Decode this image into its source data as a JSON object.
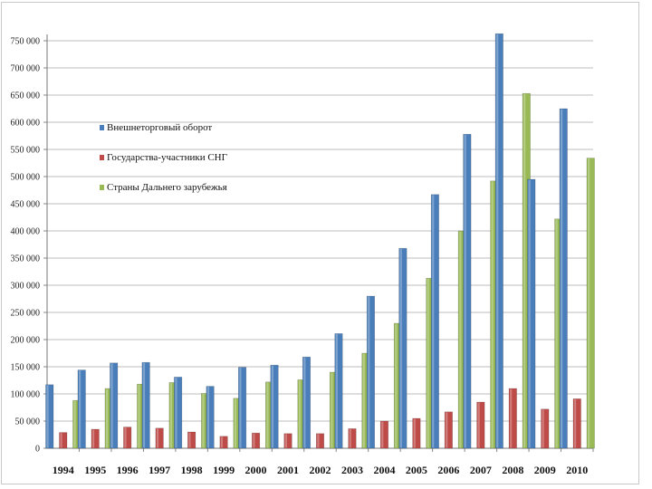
{
  "chart_data": {
    "type": "bar",
    "title": "",
    "xlabel": "",
    "ylabel": "",
    "ylim": [
      0,
      750000
    ],
    "yticks": [
      0,
      50000,
      100000,
      150000,
      200000,
      250000,
      300000,
      350000,
      400000,
      450000,
      500000,
      550000,
      600000,
      650000,
      700000,
      750000
    ],
    "ytick_labels": [
      "0",
      "50 000",
      "100 000",
      "150 000",
      "200 000",
      "250 000",
      "300 000",
      "350 000",
      "400 000",
      "450 000",
      "500 000",
      "550 000",
      "600 000",
      "650 000",
      "700 000",
      "750 000"
    ],
    "grid": true,
    "legend_position": "upper-left",
    "categories": [
      "1994",
      "1995",
      "1996",
      "1997",
      "1998",
      "1999",
      "2000",
      "2001",
      "2002",
      "2003",
      "2004",
      "2005",
      "2006",
      "2007",
      "2008",
      "2009",
      "2010"
    ],
    "series": [
      {
        "name": "Внешнеторговый оборот",
        "color": "#4a7ebb",
        "values": [
          117000,
          144000,
          157000,
          158000,
          131000,
          114000,
          149000,
          153000,
          168000,
          211000,
          280000,
          368000,
          467000,
          578000,
          763000,
          495000,
          625000
        ]
      },
      {
        "name": "Государства-участники СНГ",
        "color": "#be4b48",
        "values": [
          29000,
          35000,
          39000,
          37000,
          30000,
          22000,
          28000,
          27000,
          27000,
          36000,
          50000,
          55000,
          67000,
          85000,
          110000,
          72000,
          91000
        ]
      },
      {
        "name": "Страны Дальнего зарубежья",
        "color": "#98b954",
        "values": [
          88000,
          110000,
          118000,
          121000,
          101000,
          92000,
          122000,
          126000,
          140000,
          175000,
          230000,
          313000,
          400000,
          492000,
          653000,
          422000,
          534000
        ]
      }
    ]
  }
}
